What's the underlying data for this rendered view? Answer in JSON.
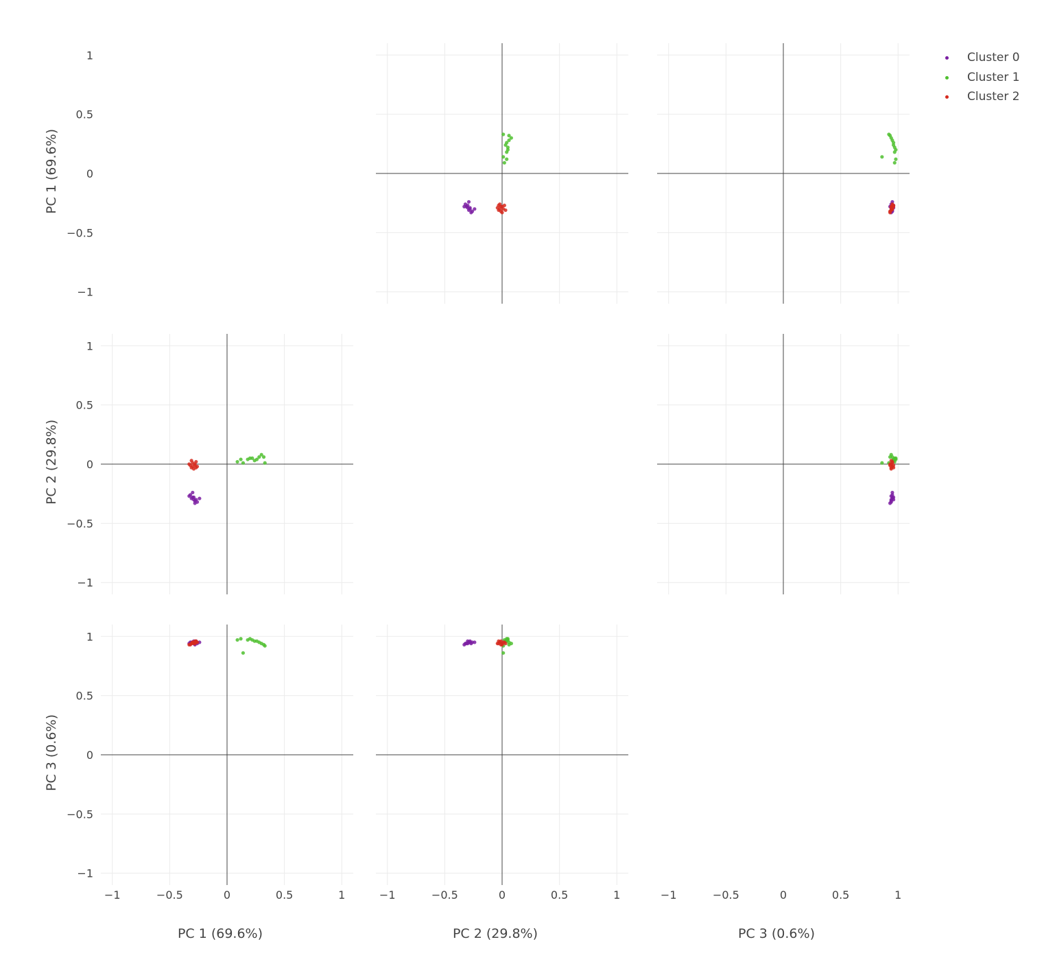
{
  "colors": {
    "cluster_0": "#7b1fa2",
    "cluster_1": "#4fbf2f",
    "cluster_2": "#d62a1f",
    "grid": "#ebebeb",
    "zeroline": "#444444",
    "text": "#444444"
  },
  "chart_data": {
    "type": "scatter",
    "layout": "scatter-matrix",
    "dimensions": [
      {
        "label": "PC 1 (69.6%)"
      },
      {
        "label": "PC 2 (29.8%)"
      },
      {
        "label": "PC 3 (0.6%)"
      }
    ],
    "axis_range": [
      -1.1,
      1.1
    ],
    "ticks": [
      -1,
      -0.5,
      0,
      0.5,
      1
    ],
    "tick_labels": [
      "−1",
      "−0.5",
      "0",
      "0.5",
      "1"
    ],
    "grid": true,
    "zero_lines": true,
    "diagonal_empty": true,
    "legend_position": "top-right",
    "series": [
      {
        "name": "Cluster 0",
        "color": "#7b1fa2",
        "points": [
          [
            -0.31,
            -0.29,
            0.95
          ],
          [
            -0.32,
            -0.26,
            0.95
          ],
          [
            -0.3,
            -0.28,
            0.95
          ],
          [
            -0.29,
            -0.3,
            0.94
          ],
          [
            -0.28,
            -0.31,
            0.94
          ],
          [
            -0.27,
            -0.3,
            0.96
          ],
          [
            -0.24,
            -0.29,
            0.95
          ],
          [
            -0.3,
            -0.24,
            0.95
          ],
          [
            -0.28,
            -0.33,
            0.93
          ],
          [
            -0.26,
            -0.32,
            0.94
          ],
          [
            -0.29,
            -0.28,
            0.96
          ],
          [
            -0.33,
            -0.27,
            0.94
          ]
        ]
      },
      {
        "name": "Cluster 1",
        "color": "#4fbf2f",
        "points": [
          [
            0.09,
            0.02,
            0.97
          ],
          [
            0.14,
            0.01,
            0.86
          ],
          [
            0.2,
            0.05,
            0.98
          ],
          [
            0.22,
            0.05,
            0.97
          ],
          [
            0.18,
            0.04,
            0.97
          ],
          [
            0.26,
            0.04,
            0.96
          ],
          [
            0.3,
            0.08,
            0.94
          ],
          [
            0.33,
            0.01,
            0.92
          ],
          [
            0.28,
            0.06,
            0.95
          ],
          [
            0.12,
            0.04,
            0.98
          ],
          [
            0.32,
            0.06,
            0.93
          ],
          [
            0.24,
            0.03,
            0.96
          ]
        ]
      },
      {
        "name": "Cluster 2",
        "color": "#d62a1f",
        "points": [
          [
            -0.32,
            -0.01,
            0.93
          ],
          [
            -0.31,
            0.03,
            0.94
          ],
          [
            -0.3,
            -0.02,
            0.95
          ],
          [
            -0.28,
            0.0,
            0.94
          ],
          [
            -0.27,
            -0.03,
            0.96
          ],
          [
            -0.26,
            -0.02,
            0.95
          ],
          [
            -0.29,
            -0.04,
            0.94
          ],
          [
            -0.33,
            0.0,
            0.93
          ],
          [
            -0.3,
            0.01,
            0.95
          ],
          [
            -0.28,
            -0.01,
            0.96
          ],
          [
            -0.31,
            -0.03,
            0.94
          ],
          [
            -0.27,
            0.02,
            0.95
          ]
        ]
      }
    ]
  }
}
